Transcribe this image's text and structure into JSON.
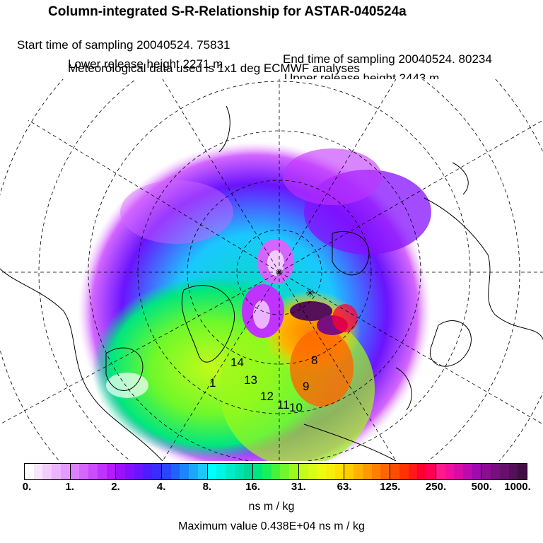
{
  "header": {
    "title": "Column-integrated S-R-Relationship for ASTAR-040524a",
    "start_label": "Start time of sampling 20040524. 75831",
    "end_label": "End time of sampling 20040524. 80234",
    "lower_label": "Lower release height 2271 m",
    "upper_label": "Upper release height 2443 m",
    "met_label": "Meteorological data used is 1x1 deg ECMWF analyses"
  },
  "map": {
    "time_labels": [
      "14",
      "13",
      "12",
      "11",
      "10",
      "9",
      "8",
      "1"
    ]
  },
  "legend": {
    "ticks": [
      "0.",
      "1.",
      "2.",
      "4.",
      "8.",
      "16.",
      "31.",
      "63.",
      "125.",
      "250.",
      "500.",
      "1000."
    ],
    "units": "ns m / kg",
    "max_value": "Maximum value  0.438E+04 ns m / kg",
    "colors": [
      [
        "#ffffff",
        "#f8e6ff",
        "#f2ccff",
        "#ecb3ff",
        "#e59aff"
      ],
      [
        "#dd80ff",
        "#d366ff",
        "#c94dff",
        "#bf33ff",
        "#b31aff"
      ],
      [
        "#9b10ff",
        "#8410ff",
        "#6a14ff",
        "#4f1cff",
        "#3a2cff"
      ],
      [
        "#2a44ff",
        "#1c63ff",
        "#1a86ff",
        "#1aa8ff",
        "#1ac8ff"
      ],
      [
        "#00ffff",
        "#00f5e6",
        "#00ebcc",
        "#00e1b3",
        "#00d899"
      ],
      [
        "#00e680",
        "#1aef5a",
        "#44f43a",
        "#70f82a",
        "#9cfa1a"
      ],
      [
        "#c3fb1a",
        "#d9fb1a",
        "#ecfa14",
        "#f7ee10",
        "#ffe000"
      ],
      [
        "#ffcc00",
        "#ffb300",
        "#ff9900",
        "#ff8000",
        "#ff6600"
      ],
      [
        "#ff4d00",
        "#ff3300",
        "#ff1a1a",
        "#ff0033",
        "#ff0055"
      ],
      [
        "#ff1a8c",
        "#f0109c",
        "#d80ca6",
        "#bf0aae",
        "#a00ab0"
      ],
      [
        "#8c0c94",
        "#780e80",
        "#66106c",
        "#541058",
        "#420f44"
      ]
    ]
  }
}
